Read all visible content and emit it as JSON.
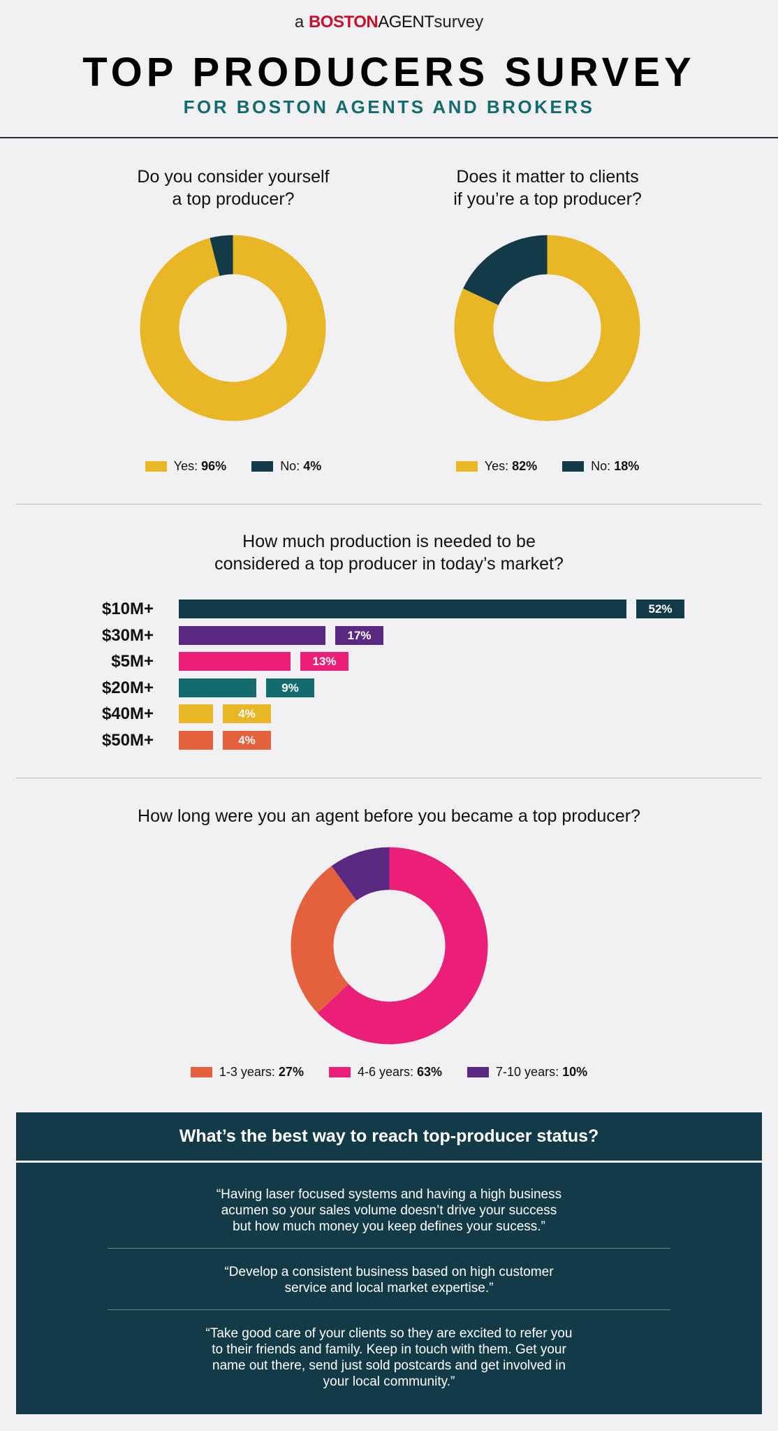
{
  "header": {
    "brand_prefix": "a",
    "brand_name_boston": "BOSTON",
    "brand_name_agent": "AGENT",
    "brand_suffix": "survey",
    "title": "TOP PRODUCERS SURVEY",
    "subtitle": "FOR BOSTON AGENTS AND BROKERS"
  },
  "colors": {
    "yellow": "#e9b726",
    "navy": "#133a47",
    "purple": "#5a2a82",
    "pink": "#ea1f78",
    "teal": "#146b6e",
    "orange": "#e5603c",
    "subtitle": "#146b6e"
  },
  "chart_data": [
    {
      "type": "pie",
      "title": "Do you consider yourself a top producer?",
      "title_lines": [
        "Do you consider yourself",
        "a top producer?"
      ],
      "donut": true,
      "categories": [
        "Yes",
        "No"
      ],
      "values": [
        96,
        4
      ],
      "labels": [
        "Yes:",
        "No:"
      ],
      "value_labels": [
        "96%",
        "4%"
      ],
      "colors": [
        "#e9b726",
        "#133a47"
      ]
    },
    {
      "type": "pie",
      "title": "Does it matter to clients if you’re a top producer?",
      "title_lines": [
        "Does it matter to clients",
        "if you’re a top producer?"
      ],
      "donut": true,
      "categories": [
        "Yes",
        "No"
      ],
      "values": [
        82,
        18
      ],
      "labels": [
        "Yes:",
        "No:"
      ],
      "value_labels": [
        "82%",
        "18%"
      ],
      "colors": [
        "#e9b726",
        "#133a47"
      ]
    },
    {
      "type": "bar",
      "orientation": "horizontal",
      "title": "How much production is needed to be considered a top producer in today’s market?",
      "title_lines": [
        "How much production is needed to be",
        "considered a top producer in today’s market?"
      ],
      "categories": [
        "$10M+",
        "$30M+",
        "$5M+",
        "$20M+",
        "$40M+",
        "$50M+"
      ],
      "values": [
        52,
        17,
        13,
        9,
        4,
        4
      ],
      "value_labels": [
        "52%",
        "17%",
        "13%",
        "9%",
        "4%",
        "4%"
      ],
      "colors": [
        "#133a47",
        "#5a2a82",
        "#ea1f78",
        "#146b6e",
        "#e9b726",
        "#e5603c"
      ]
    },
    {
      "type": "pie",
      "title": "How long were you an agent before you became a top producer?",
      "title_lines": [
        "How long were you an agent before you became a top producer?"
      ],
      "donut": true,
      "categories": [
        "4-6 years",
        "1-3 years",
        "7-10 years"
      ],
      "values": [
        63,
        27,
        10
      ],
      "colors": [
        "#ea1f78",
        "#e5603c",
        "#5a2a82"
      ],
      "legend": [
        {
          "label": "1-3 years:",
          "value": "27%",
          "color": "#e5603c"
        },
        {
          "label": "4-6 years:",
          "value": "63%",
          "color": "#ea1f78"
        },
        {
          "label": "7-10 years:",
          "value": "10%",
          "color": "#5a2a82"
        }
      ]
    }
  ],
  "quotes_panel": {
    "title": "What’s the best way to reach top-producer status?",
    "quotes": [
      [
        "“Having laser focused systems and having a high business",
        "acumen so your sales volume doesn’t drive your success",
        "but how much money you keep defines your sucess.”"
      ],
      [
        "“Develop a consistent business based on high customer",
        "service and local market expertise.”"
      ],
      [
        "“Take good care of your clients so they are excited to refer you",
        "to their friends and family. Keep in touch with them. Get your",
        "name out there, send just sold postcards and get involved in",
        "your local community.”"
      ]
    ]
  }
}
